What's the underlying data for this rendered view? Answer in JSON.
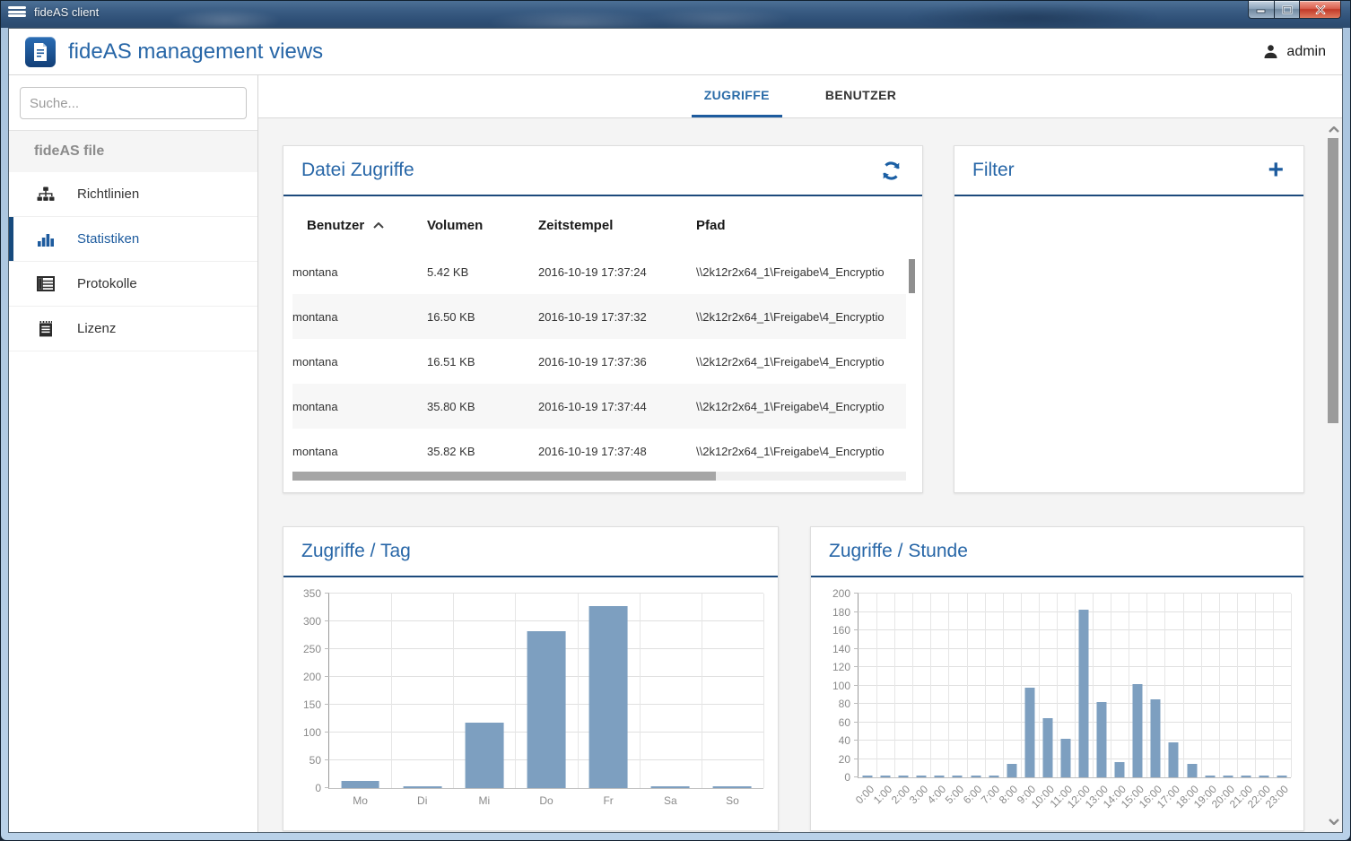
{
  "window": {
    "title": "fideAS client"
  },
  "header": {
    "title": "fideAS management views",
    "user": "admin"
  },
  "sidebar": {
    "search_placeholder": "Suche...",
    "section": "fideAS file",
    "items": [
      {
        "label": "Richtlinien",
        "icon": "hierarchy-icon",
        "active": false
      },
      {
        "label": "Statistiken",
        "icon": "bar-chart-icon",
        "active": true
      },
      {
        "label": "Protokolle",
        "icon": "list-icon",
        "active": false
      },
      {
        "label": "Lizenz",
        "icon": "license-icon",
        "active": false
      }
    ]
  },
  "tabs": [
    {
      "label": "ZUGRIFFE",
      "active": true
    },
    {
      "label": "BENUTZER",
      "active": false
    }
  ],
  "cards": {
    "file_access": {
      "title": "Datei Zugriffe",
      "refresh_icon": "refresh-icon",
      "columns": [
        "Benutzer",
        "Volumen",
        "Zeitstempel",
        "Pfad"
      ],
      "sorted_column": "Benutzer",
      "sort_direction": "asc",
      "rows": [
        [
          "montana",
          "5.42 KB",
          "2016-10-19 17:37:24",
          "\\\\2k12r2x64_1\\Freigabe\\4_Encryptio"
        ],
        [
          "montana",
          "16.50 KB",
          "2016-10-19 17:37:32",
          "\\\\2k12r2x64_1\\Freigabe\\4_Encryptio"
        ],
        [
          "montana",
          "16.51 KB",
          "2016-10-19 17:37:36",
          "\\\\2k12r2x64_1\\Freigabe\\4_Encryptio"
        ],
        [
          "montana",
          "35.80 KB",
          "2016-10-19 17:37:44",
          "\\\\2k12r2x64_1\\Freigabe\\4_Encryptio"
        ],
        [
          "montana",
          "35.82 KB",
          "2016-10-19 17:37:48",
          "\\\\2k12r2x64_1\\Freigabe\\4_Encryptio"
        ]
      ]
    },
    "filter": {
      "title": "Filter",
      "add_icon": "plus-icon",
      "plus_glyph": "+"
    }
  },
  "chart_data": [
    {
      "type": "bar",
      "title": "Zugriffe / Tag",
      "categories": [
        "Mo",
        "Di",
        "Mi",
        "Do",
        "Fr",
        "Sa",
        "So"
      ],
      "values": [
        13,
        1,
        118,
        283,
        328,
        1,
        1
      ],
      "xlabel": "",
      "ylabel": "",
      "ylim": [
        0,
        350
      ],
      "ytick_step": 50,
      "grid": true,
      "legend": false,
      "rotate_xlabels": false,
      "bar_color": "#7d9fc0"
    },
    {
      "type": "bar",
      "title": "Zugriffe / Stunde",
      "categories": [
        "0:00",
        "1:00",
        "2:00",
        "3:00",
        "4:00",
        "5:00",
        "6:00",
        "7:00",
        "8:00",
        "9:00",
        "10:00",
        "11:00",
        "12:00",
        "13:00",
        "14:00",
        "15:00",
        "16:00",
        "17:00",
        "18:00",
        "19:00",
        "20:00",
        "21:00",
        "22:00",
        "23:00"
      ],
      "values": [
        0,
        0,
        0,
        0,
        0,
        0,
        0,
        0,
        15,
        98,
        64,
        42,
        182,
        82,
        17,
        101,
        85,
        38,
        15,
        0,
        0,
        0,
        0,
        0
      ],
      "xlabel": "",
      "ylabel": "",
      "ylim": [
        0,
        200
      ],
      "ytick_step": 20,
      "grid": true,
      "legend": false,
      "rotate_xlabels": true,
      "bar_color": "#7d9fc0"
    }
  ],
  "colors": {
    "accent": "#2766a7",
    "accent_dark": "#1c4a7c",
    "active_blue": "#1d5b9e",
    "bar": "#7d9fc0",
    "titlebar": "#33597f",
    "close_red": "#c23a28",
    "content_bg": "#f4f4f4"
  }
}
